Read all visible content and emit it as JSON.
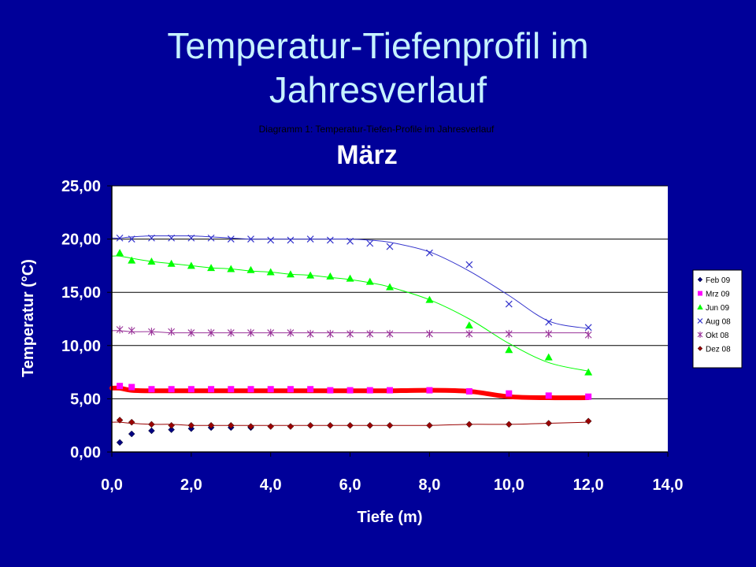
{
  "slide": {
    "title_line1": "Temperatur-Tiefenprofil im",
    "title_line2": "Jahresverlauf"
  },
  "chart_data": {
    "type": "scatter",
    "title": "Diagramm 1: Temperatur-Tiefen-Profile im Jahresverlauf",
    "subtitle": "März",
    "xlabel": "Tiefe (m)",
    "ylabel": "Temperatur (°C)",
    "xlim": [
      0,
      14
    ],
    "ylim": [
      0,
      25
    ],
    "xticks": [
      "0,0",
      "2,0",
      "4,0",
      "6,0",
      "8,0",
      "10,0",
      "12,0",
      "14,0"
    ],
    "yticks": [
      "0,00",
      "5,00",
      "10,00",
      "15,00",
      "20,00",
      "25,00"
    ],
    "grid": "horizontal",
    "legend_position": "right",
    "series": [
      {
        "name": "Feb 09",
        "marker": "diamond",
        "color": "#000080",
        "x": [
          0.2,
          0.5,
          1.0,
          1.5,
          2.0,
          2.5,
          3.0,
          3.5
        ],
        "y": [
          0.9,
          1.7,
          2.0,
          2.1,
          2.2,
          2.3,
          2.3,
          2.3
        ]
      },
      {
        "name": "Mrz 09",
        "marker": "square",
        "color": "#ff00ff",
        "x": [
          0.2,
          0.5,
          1.0,
          1.5,
          2.0,
          2.5,
          3.0,
          3.5,
          4.0,
          4.5,
          5.0,
          5.5,
          6.0,
          6.5,
          7.0,
          8.0,
          9.0,
          10.0,
          11.0,
          12.0
        ],
        "y": [
          6.2,
          6.1,
          5.9,
          5.9,
          5.9,
          5.9,
          5.9,
          5.9,
          5.9,
          5.9,
          5.9,
          5.8,
          5.8,
          5.8,
          5.8,
          5.8,
          5.7,
          5.5,
          5.3,
          5.2
        ],
        "trend": {
          "color": "#ff0000",
          "width": 6,
          "y": [
            6.0,
            5.8,
            5.75,
            5.75,
            5.75,
            5.75,
            5.75,
            5.75,
            5.75,
            5.75,
            5.75,
            5.75,
            5.75,
            5.75,
            5.75,
            5.8,
            5.7,
            5.2,
            5.1,
            5.1
          ]
        }
      },
      {
        "name": "Jun 09",
        "marker": "triangle",
        "color": "#00ff00",
        "x": [
          0.2,
          0.5,
          1.0,
          1.5,
          2.0,
          2.5,
          3.0,
          3.5,
          4.0,
          4.5,
          5.0,
          5.5,
          6.0,
          6.5,
          7.0,
          8.0,
          9.0,
          10.0,
          11.0,
          12.0
        ],
        "y": [
          18.7,
          18.0,
          17.9,
          17.7,
          17.5,
          17.3,
          17.2,
          17.1,
          16.9,
          16.7,
          16.6,
          16.5,
          16.3,
          16.0,
          15.5,
          14.3,
          11.9,
          9.6,
          8.9,
          7.5
        ],
        "trend": {
          "color": "#00ff00",
          "width": 1,
          "y": [
            18.4,
            18.2,
            17.9,
            17.7,
            17.5,
            17.3,
            17.2,
            17.0,
            16.9,
            16.7,
            16.6,
            16.4,
            16.2,
            15.9,
            15.5,
            14.3,
            12.5,
            10.2,
            8.4,
            7.6
          ]
        }
      },
      {
        "name": "Aug 08",
        "marker": "x",
        "color": "#3333cc",
        "x": [
          0.2,
          0.5,
          1.0,
          1.5,
          2.0,
          2.5,
          3.0,
          3.5,
          4.0,
          4.5,
          5.0,
          5.5,
          6.0,
          6.5,
          7.0,
          8.0,
          9.0,
          10.0,
          11.0,
          12.0
        ],
        "y": [
          20.1,
          20.0,
          20.1,
          20.1,
          20.1,
          20.1,
          20.0,
          20.0,
          19.9,
          19.9,
          20.0,
          19.9,
          19.8,
          19.6,
          19.3,
          18.7,
          17.6,
          13.9,
          12.2,
          11.7
        ],
        "trend": {
          "color": "#3333cc",
          "width": 1,
          "y": [
            20.1,
            20.2,
            20.3,
            20.3,
            20.3,
            20.2,
            20.1,
            20.0,
            20.0,
            20.0,
            20.0,
            20.0,
            20.0,
            19.9,
            19.7,
            18.8,
            17.0,
            14.7,
            12.3,
            11.6
          ]
        }
      },
      {
        "name": "Okt 08",
        "marker": "star",
        "color": "#993399",
        "x": [
          0.2,
          0.5,
          1.0,
          1.5,
          2.0,
          2.5,
          3.0,
          3.5,
          4.0,
          4.5,
          5.0,
          5.5,
          6.0,
          6.5,
          7.0,
          8.0,
          9.0,
          10.0,
          11.0,
          12.0
        ],
        "y": [
          11.5,
          11.4,
          11.3,
          11.3,
          11.2,
          11.2,
          11.2,
          11.2,
          11.2,
          11.2,
          11.1,
          11.1,
          11.1,
          11.1,
          11.1,
          11.1,
          11.1,
          11.1,
          11.1,
          11.0
        ],
        "trend": {
          "color": "#993399",
          "width": 1,
          "y": [
            11.4,
            11.3,
            11.3,
            11.2,
            11.2,
            11.2,
            11.2,
            11.2,
            11.2,
            11.2,
            11.2,
            11.2,
            11.2,
            11.2,
            11.2,
            11.2,
            11.2,
            11.2,
            11.2,
            11.2
          ]
        }
      },
      {
        "name": "Dez 08",
        "marker": "diamond",
        "color": "#990000",
        "x": [
          0.2,
          0.5,
          1.0,
          1.5,
          2.0,
          2.5,
          3.0,
          3.5,
          4.0,
          4.5,
          5.0,
          5.5,
          6.0,
          6.5,
          7.0,
          8.0,
          9.0,
          10.0,
          11.0,
          12.0
        ],
        "y": [
          3.0,
          2.8,
          2.6,
          2.5,
          2.5,
          2.5,
          2.5,
          2.4,
          2.4,
          2.4,
          2.5,
          2.5,
          2.5,
          2.5,
          2.5,
          2.5,
          2.6,
          2.6,
          2.7,
          2.9
        ],
        "trend": {
          "color": "#990000",
          "width": 1,
          "y": [
            2.8,
            2.7,
            2.6,
            2.6,
            2.5,
            2.5,
            2.5,
            2.5,
            2.5,
            2.5,
            2.5,
            2.5,
            2.5,
            2.5,
            2.5,
            2.5,
            2.6,
            2.6,
            2.7,
            2.8
          ]
        }
      }
    ]
  }
}
